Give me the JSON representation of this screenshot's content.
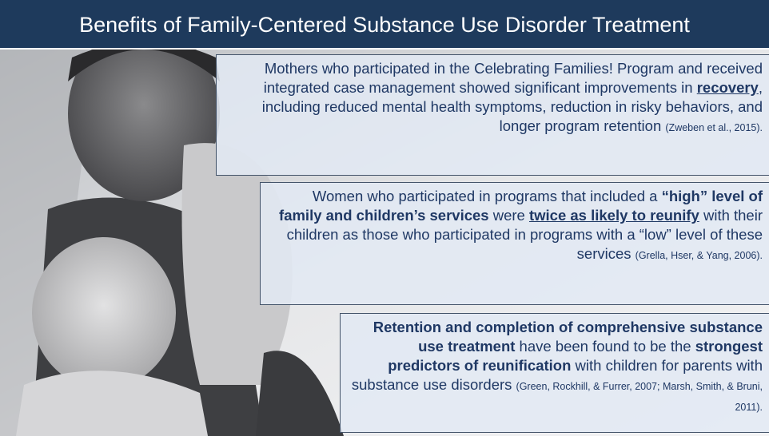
{
  "title": "Benefits of Family-Centered Substance Use Disorder Treatment",
  "boxes": [
    {
      "segments": [
        {
          "text": "Mothers who participated in the Celebrating Families! Program and received integrated case management showed significant improvements in ",
          "style": "plain"
        },
        {
          "text": "recovery",
          "style": "bold underline"
        },
        {
          "text": ", including reduced mental health symptoms, reduction in risky behaviors, and longer program retention ",
          "style": "plain"
        },
        {
          "text": "(Zweben et al., 2015).",
          "style": "citation"
        }
      ]
    },
    {
      "segments": [
        {
          "text": "Women who participated in programs that included a ",
          "style": "plain"
        },
        {
          "text": "“high” level of family and children’s services",
          "style": "bold"
        },
        {
          "text": " were ",
          "style": "plain"
        },
        {
          "text": "twice as likely to reunify",
          "style": "bold underline"
        },
        {
          "text": " with their children as those who participated in programs with a “low” level of these services ",
          "style": "plain"
        },
        {
          "text": "(Grella, Hser, & Yang, 2006).",
          "style": "citation"
        }
      ]
    },
    {
      "segments": [
        {
          "text": "Retention and completion of comprehensive substance use treatment",
          "style": "bold"
        },
        {
          "text": " have been found to be the ",
          "style": "plain"
        },
        {
          "text": "strongest predictors of reunification",
          "style": "bold"
        },
        {
          "text": " with children for parents with substance use disorders ",
          "style": "plain"
        },
        {
          "text": "(Green, Rockhill, & Furrer, 2007; Marsh, Smith, & Bruni, 2011).",
          "style": "citation"
        }
      ]
    }
  ]
}
